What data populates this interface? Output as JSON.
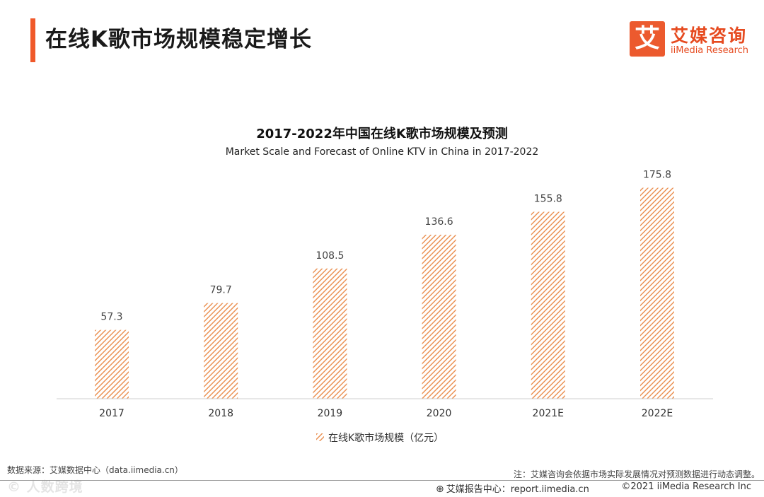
{
  "page": {
    "title": "在线K歌市场规模稳定增长"
  },
  "logo": {
    "mark": "艾",
    "name_cn": "艾媒咨询",
    "name_en": "iiMedia Research"
  },
  "colors": {
    "accent": "#f0592a",
    "bar_stripe": "#e8843e",
    "brand": "#e64a1f"
  },
  "chart_data": {
    "type": "bar",
    "title": "2017-2022年中国在线K歌市场规模及预测",
    "subtitle": "Market Scale and Forecast of Online KTV in China in 2017-2022",
    "categories": [
      "2017",
      "2018",
      "2019",
      "2020",
      "2021E",
      "2022E"
    ],
    "series": [
      {
        "name": "在线K歌市场规模（亿元）",
        "values": [
          57.3,
          79.7,
          108.5,
          136.6,
          155.8,
          175.8
        ]
      }
    ],
    "value_labels": [
      "57.3",
      "79.7",
      "108.5",
      "136.6",
      "155.8",
      "175.8"
    ],
    "ylim": [
      0,
      185
    ],
    "grid": false,
    "legend": "bottom-center",
    "bar_fill": "diagonal-hatch"
  },
  "footer": {
    "source": "数据来源：艾媒数据中心（data.iimedia.cn）",
    "note": "注：艾媒咨询会依据市场实际发展情况对预测数据进行动态调整。",
    "report_center": "艾媒报告中心：report.iimedia.cn",
    "copyright": "©2021  iiMedia Research  Inc",
    "watermark": "© 人数跨境"
  }
}
